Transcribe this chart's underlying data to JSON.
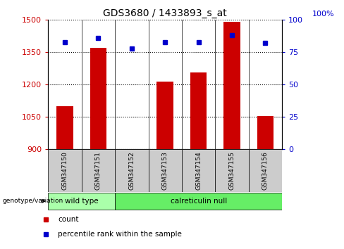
{
  "title": "GDS3680 / 1433893_s_at",
  "samples": [
    "GSM347150",
    "GSM347151",
    "GSM347152",
    "GSM347153",
    "GSM347154",
    "GSM347155",
    "GSM347156"
  ],
  "bar_values": [
    1100,
    1370,
    895,
    1215,
    1255,
    1490,
    1055
  ],
  "percentile_values": [
    83,
    86,
    78,
    83,
    83,
    88,
    82
  ],
  "ylim_left": [
    900,
    1500
  ],
  "ylim_right": [
    0,
    100
  ],
  "yticks_left": [
    900,
    1050,
    1200,
    1350,
    1500
  ],
  "yticks_right": [
    0,
    25,
    50,
    75,
    100
  ],
  "bar_color": "#cc0000",
  "dot_color": "#0000cc",
  "bar_width": 0.5,
  "groups": [
    {
      "label": "wild type",
      "samples": [
        0,
        1
      ],
      "color": "#aaffaa"
    },
    {
      "label": "calreticulin null",
      "samples": [
        2,
        3,
        4,
        5,
        6
      ],
      "color": "#66ee66"
    }
  ],
  "genotype_label": "genotype/variation",
  "legend_count_label": "count",
  "legend_percentile_label": "percentile rank within the sample",
  "background_color": "#ffffff",
  "plot_bg_color": "#ffffff",
  "grid_color": "#000000",
  "tick_label_color_left": "#cc0000",
  "tick_label_color_right": "#0000cc",
  "right_axis_top_label": "100%"
}
